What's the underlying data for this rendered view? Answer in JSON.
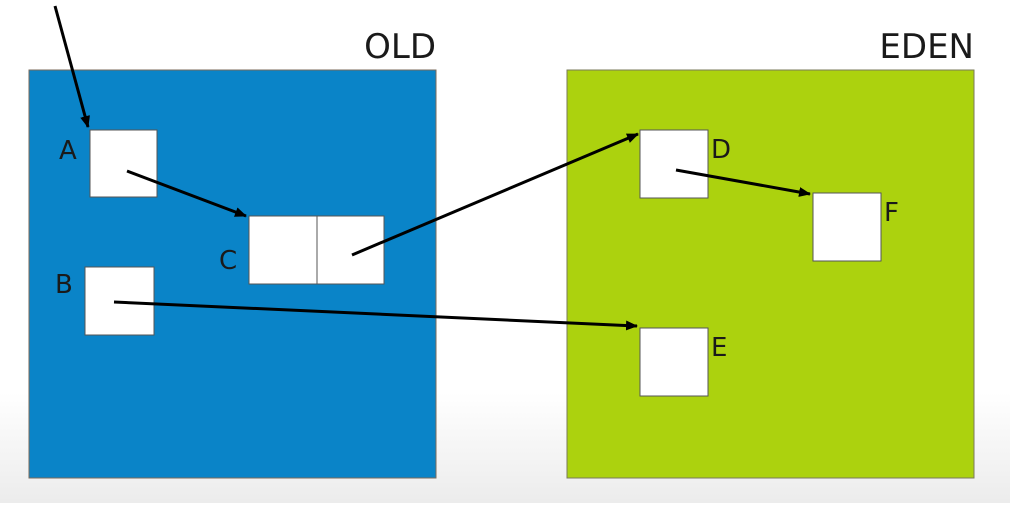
{
  "regions": {
    "old": {
      "label": "OLD",
      "color": "#0a84c8"
    },
    "eden": {
      "label": "EDEN",
      "color": "#acd20e"
    }
  },
  "objects": {
    "a": {
      "label": "A"
    },
    "b": {
      "label": "B"
    },
    "c": {
      "label": "C"
    },
    "d": {
      "label": "D"
    },
    "e": {
      "label": "E"
    },
    "f": {
      "label": "F"
    }
  },
  "references": [
    {
      "from": "root",
      "to": "A"
    },
    {
      "from": "A",
      "to": "C"
    },
    {
      "from": "C",
      "to": "D"
    },
    {
      "from": "B",
      "to": "E"
    },
    {
      "from": "D",
      "to": "F"
    }
  ],
  "colors": {
    "object_fill": "#ffffff",
    "object_stroke": "#555555",
    "arrow": "#000000",
    "text": "#1a1a1a"
  }
}
